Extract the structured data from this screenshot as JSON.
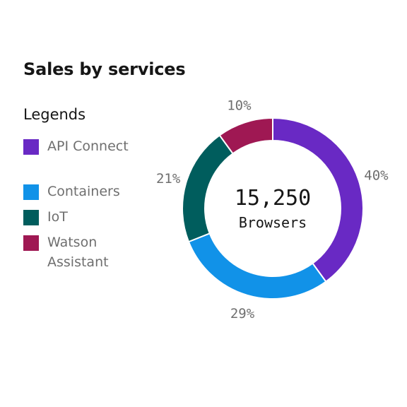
{
  "title": "Sales by services",
  "legend": {
    "title": "Legends",
    "items": [
      {
        "label": "API Connect",
        "color": "#6929c4"
      },
      {
        "label": "Containers",
        "color": "#1192e8"
      },
      {
        "label": "IoT",
        "color": "#005d5d"
      },
      {
        "label": "Watson Assistant",
        "color": "#9f1853"
      }
    ]
  },
  "center": {
    "value": "15,250",
    "label": "Browsers"
  },
  "chart_data": {
    "type": "pie",
    "title": "Sales by services",
    "donut": true,
    "categories": [
      "API Connect",
      "Containers",
      "IoT",
      "Watson Assistant"
    ],
    "values": [
      40,
      29,
      21,
      10
    ],
    "value_labels": [
      "40%",
      "29%",
      "21%",
      "10%"
    ],
    "colors": [
      "#6929c4",
      "#1192e8",
      "#005d5d",
      "#9f1853"
    ],
    "total": "15,250",
    "total_label": "Browsers",
    "legend_position": "left"
  }
}
